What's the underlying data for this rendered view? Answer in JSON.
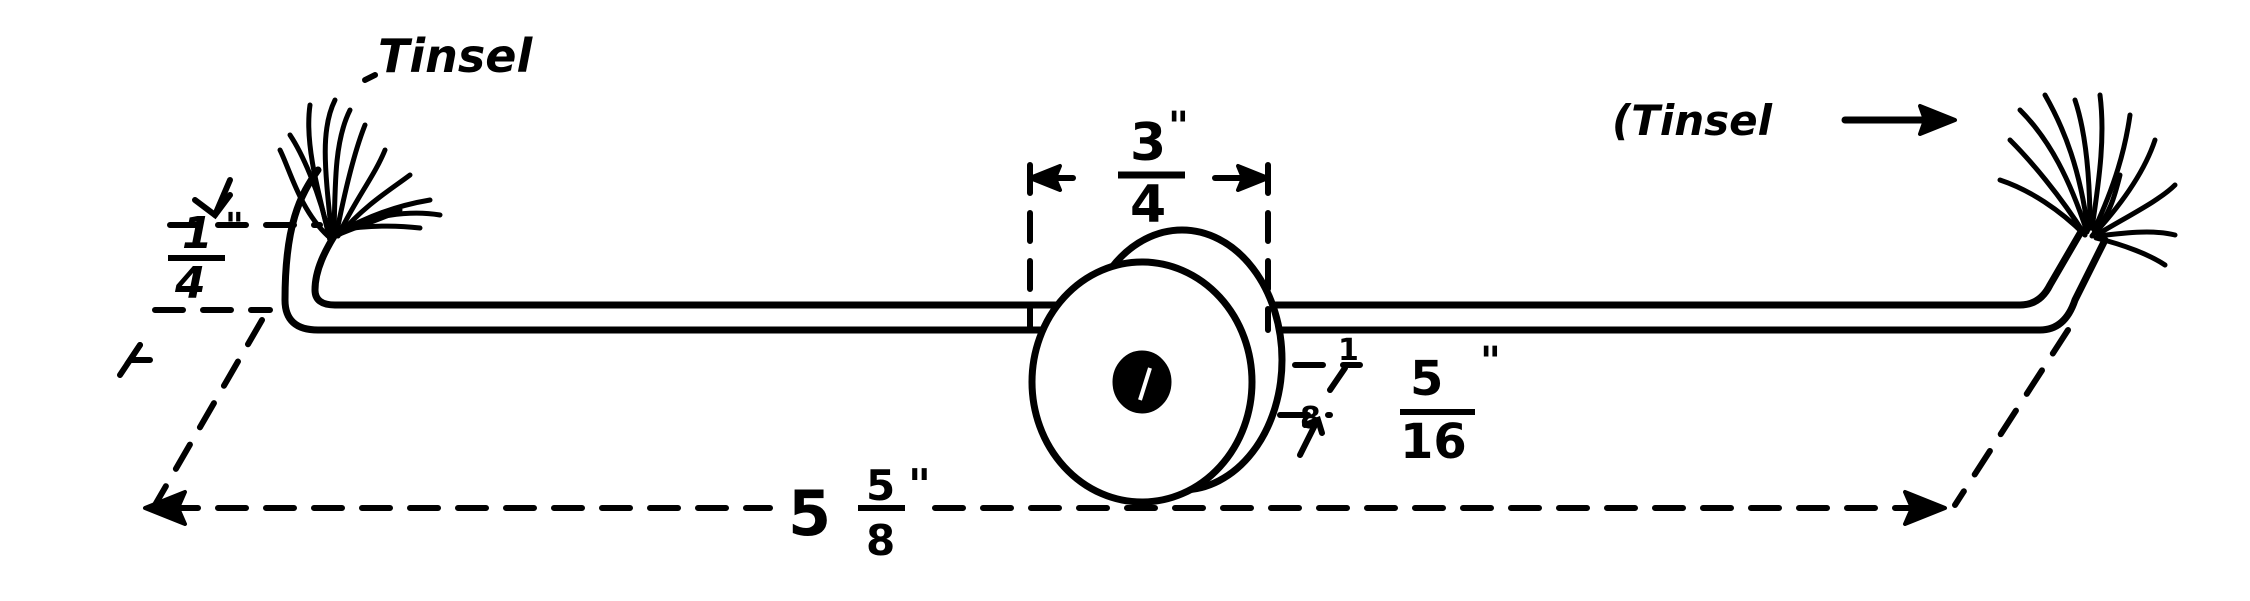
{
  "labels": {
    "tinsel_left": "Tinsel",
    "tinsel_right": "(Tinsel",
    "overall_length_whole": "5",
    "overall_length_num": "5",
    "overall_length_den": "8",
    "inch_mark": "\"",
    "wheel_width_num": "3",
    "wheel_width_den": "4",
    "end_height_num": "1",
    "end_height_den": "4",
    "thickness_num": "5",
    "thickness_den": "16",
    "offset_num": "1",
    "offset_den": "8"
  },
  "colors": {
    "ink": "#000000",
    "paper": "#ffffff"
  },
  "icons": {
    "left_tuft": "tinsel-tuft-icon",
    "right_tuft": "tinsel-tuft-icon",
    "arrow": "arrowhead-icon"
  }
}
